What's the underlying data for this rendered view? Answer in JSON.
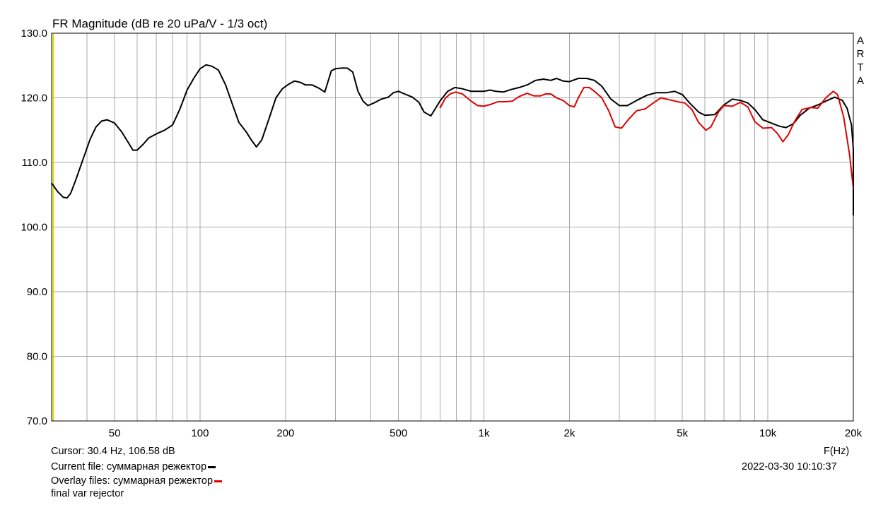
{
  "chart_data": {
    "type": "line",
    "title": "FR Magnitude (dB re 20 uPa/V - 1/3 oct)",
    "xlabel": "F(Hz)",
    "ylabel": "",
    "x_scale": "log",
    "xlim": [
      30,
      20000
    ],
    "ylim": [
      70,
      130
    ],
    "grid": true,
    "y_ticks": [
      "130.0",
      "120.0",
      "110.0",
      "100.0",
      "90.0",
      "80.0",
      "70.0"
    ],
    "x_ticks": [
      {
        "value": 50,
        "label": "50"
      },
      {
        "value": 100,
        "label": "100"
      },
      {
        "value": 200,
        "label": "200"
      },
      {
        "value": 500,
        "label": "500"
      },
      {
        "value": 1000,
        "label": "1k"
      },
      {
        "value": 2000,
        "label": "2k"
      },
      {
        "value": 5000,
        "label": "5k"
      },
      {
        "value": 10000,
        "label": "10k"
      },
      {
        "value": 20000,
        "label": "20k"
      }
    ],
    "cursor_freq": 30.4,
    "series": [
      {
        "name": "суммарная режектор",
        "color": "#000000",
        "points": [
          [
            30,
            106.8
          ],
          [
            31.5,
            105.5
          ],
          [
            33,
            104.6
          ],
          [
            34,
            104.5
          ],
          [
            35,
            105.2
          ],
          [
            36.5,
            107.3
          ],
          [
            38.5,
            110.2
          ],
          [
            41,
            113.6
          ],
          [
            43,
            115.5
          ],
          [
            45,
            116.4
          ],
          [
            47,
            116.6
          ],
          [
            50,
            116.1
          ],
          [
            53,
            114.7
          ],
          [
            56,
            113.0
          ],
          [
            58,
            111.9
          ],
          [
            60,
            111.9
          ],
          [
            63,
            112.8
          ],
          [
            66,
            113.8
          ],
          [
            70,
            114.4
          ],
          [
            75,
            115.0
          ],
          [
            80,
            115.8
          ],
          [
            85,
            118.3
          ],
          [
            90,
            121.2
          ],
          [
            95,
            123.0
          ],
          [
            100,
            124.5
          ],
          [
            105,
            125.1
          ],
          [
            110,
            124.9
          ],
          [
            116,
            124.3
          ],
          [
            123,
            122.0
          ],
          [
            130,
            119.0
          ],
          [
            137,
            116.2
          ],
          [
            145,
            114.8
          ],
          [
            152,
            113.4
          ],
          [
            158,
            112.4
          ],
          [
            165,
            113.5
          ],
          [
            175,
            116.8
          ],
          [
            185,
            120.0
          ],
          [
            195,
            121.4
          ],
          [
            205,
            122.1
          ],
          [
            215,
            122.6
          ],
          [
            225,
            122.4
          ],
          [
            235,
            122.0
          ],
          [
            248,
            122.0
          ],
          [
            262,
            121.5
          ],
          [
            275,
            120.9
          ],
          [
            290,
            124.2
          ],
          [
            300,
            124.5
          ],
          [
            315,
            124.6
          ],
          [
            330,
            124.6
          ],
          [
            345,
            124.0
          ],
          [
            360,
            121.0
          ],
          [
            375,
            119.5
          ],
          [
            390,
            118.8
          ],
          [
            410,
            119.2
          ],
          [
            435,
            119.8
          ],
          [
            460,
            120.1
          ],
          [
            480,
            120.8
          ],
          [
            500,
            121.0
          ],
          [
            525,
            120.6
          ],
          [
            560,
            120.1
          ],
          [
            590,
            119.3
          ],
          [
            615,
            117.8
          ],
          [
            650,
            117.2
          ],
          [
            700,
            119.5
          ],
          [
            745,
            121.0
          ],
          [
            790,
            121.6
          ],
          [
            840,
            121.4
          ],
          [
            900,
            121.0
          ],
          [
            950,
            121.0
          ],
          [
            1000,
            121.0
          ],
          [
            1050,
            121.2
          ],
          [
            1100,
            121.0
          ],
          [
            1170,
            120.9
          ],
          [
            1250,
            121.3
          ],
          [
            1330,
            121.6
          ],
          [
            1420,
            122.0
          ],
          [
            1520,
            122.7
          ],
          [
            1620,
            122.9
          ],
          [
            1720,
            122.7
          ],
          [
            1800,
            123.0
          ],
          [
            1900,
            122.6
          ],
          [
            2000,
            122.5
          ],
          [
            2150,
            123.0
          ],
          [
            2300,
            123.0
          ],
          [
            2450,
            122.7
          ],
          [
            2600,
            121.8
          ],
          [
            2800,
            119.8
          ],
          [
            3000,
            118.8
          ],
          [
            3200,
            118.8
          ],
          [
            3450,
            119.6
          ],
          [
            3750,
            120.4
          ],
          [
            4050,
            120.8
          ],
          [
            4400,
            120.8
          ],
          [
            4700,
            121.0
          ],
          [
            5000,
            120.5
          ],
          [
            5300,
            119.2
          ],
          [
            5700,
            117.8
          ],
          [
            6000,
            117.3
          ],
          [
            6500,
            117.4
          ],
          [
            7000,
            118.9
          ],
          [
            7500,
            119.8
          ],
          [
            8000,
            119.6
          ],
          [
            8500,
            119.2
          ],
          [
            9000,
            118.2
          ],
          [
            9600,
            116.6
          ],
          [
            10400,
            116.0
          ],
          [
            11000,
            115.6
          ],
          [
            11600,
            115.4
          ],
          [
            12300,
            116.0
          ],
          [
            13000,
            117.3
          ],
          [
            14000,
            118.4
          ],
          [
            15000,
            118.9
          ],
          [
            16200,
            119.6
          ],
          [
            17200,
            120.1
          ],
          [
            18300,
            119.6
          ],
          [
            19000,
            118.4
          ],
          [
            19700,
            115.8
          ],
          [
            20000,
            112.0
          ],
          [
            20000,
            101.8
          ]
        ]
      },
      {
        "name": "суммарная режектор",
        "color": "#e00000",
        "points": [
          [
            700,
            118.4
          ],
          [
            730,
            119.9
          ],
          [
            760,
            120.6
          ],
          [
            795,
            120.9
          ],
          [
            840,
            120.6
          ],
          [
            900,
            119.5
          ],
          [
            950,
            118.8
          ],
          [
            1000,
            118.7
          ],
          [
            1060,
            119.0
          ],
          [
            1120,
            119.4
          ],
          [
            1200,
            119.4
          ],
          [
            1260,
            119.5
          ],
          [
            1330,
            120.2
          ],
          [
            1420,
            120.7
          ],
          [
            1500,
            120.3
          ],
          [
            1580,
            120.3
          ],
          [
            1650,
            120.6
          ],
          [
            1720,
            120.6
          ],
          [
            1800,
            120.0
          ],
          [
            1900,
            119.6
          ],
          [
            2000,
            118.8
          ],
          [
            2080,
            118.6
          ],
          [
            2150,
            120.0
          ],
          [
            2250,
            121.6
          ],
          [
            2350,
            121.6
          ],
          [
            2450,
            121.0
          ],
          [
            2600,
            120.0
          ],
          [
            2750,
            118.0
          ],
          [
            2900,
            115.5
          ],
          [
            3050,
            115.3
          ],
          [
            3250,
            116.8
          ],
          [
            3450,
            118.0
          ],
          [
            3700,
            118.3
          ],
          [
            3950,
            119.2
          ],
          [
            4200,
            120.0
          ],
          [
            4500,
            119.7
          ],
          [
            4800,
            119.4
          ],
          [
            5100,
            119.2
          ],
          [
            5400,
            118.2
          ],
          [
            5700,
            116.2
          ],
          [
            6050,
            115.0
          ],
          [
            6300,
            115.5
          ],
          [
            6700,
            117.8
          ],
          [
            7000,
            118.8
          ],
          [
            7500,
            118.7
          ],
          [
            8000,
            119.3
          ],
          [
            8500,
            118.6
          ],
          [
            9000,
            116.3
          ],
          [
            9600,
            115.3
          ],
          [
            10300,
            115.4
          ],
          [
            10800,
            114.5
          ],
          [
            11300,
            113.2
          ],
          [
            11800,
            114.3
          ],
          [
            12400,
            116.3
          ],
          [
            13200,
            118.2
          ],
          [
            14200,
            118.5
          ],
          [
            15000,
            118.4
          ],
          [
            16000,
            120.0
          ],
          [
            17000,
            121.0
          ],
          [
            17600,
            120.5
          ],
          [
            18500,
            117.0
          ],
          [
            19400,
            111.2
          ],
          [
            20000,
            106.0
          ]
        ]
      }
    ]
  },
  "footer": {
    "cursor": "Cursor: 30.4 Hz, 106.58 dB",
    "current_file": "Current file: суммарная режектор",
    "overlay_files": "Overlay files: суммарная режектор",
    "overlay_file_2": "final var rejector",
    "x_unit": "F(Hz)",
    "timestamp": "2022-03-30  10:10:37"
  },
  "watermark": [
    "A",
    "R",
    "T",
    "A"
  ],
  "colors": {
    "current": "#000000",
    "overlay": "#e00000",
    "cursor": "#d8d800",
    "grid": "#a8a8a8",
    "frame": "#000000"
  }
}
